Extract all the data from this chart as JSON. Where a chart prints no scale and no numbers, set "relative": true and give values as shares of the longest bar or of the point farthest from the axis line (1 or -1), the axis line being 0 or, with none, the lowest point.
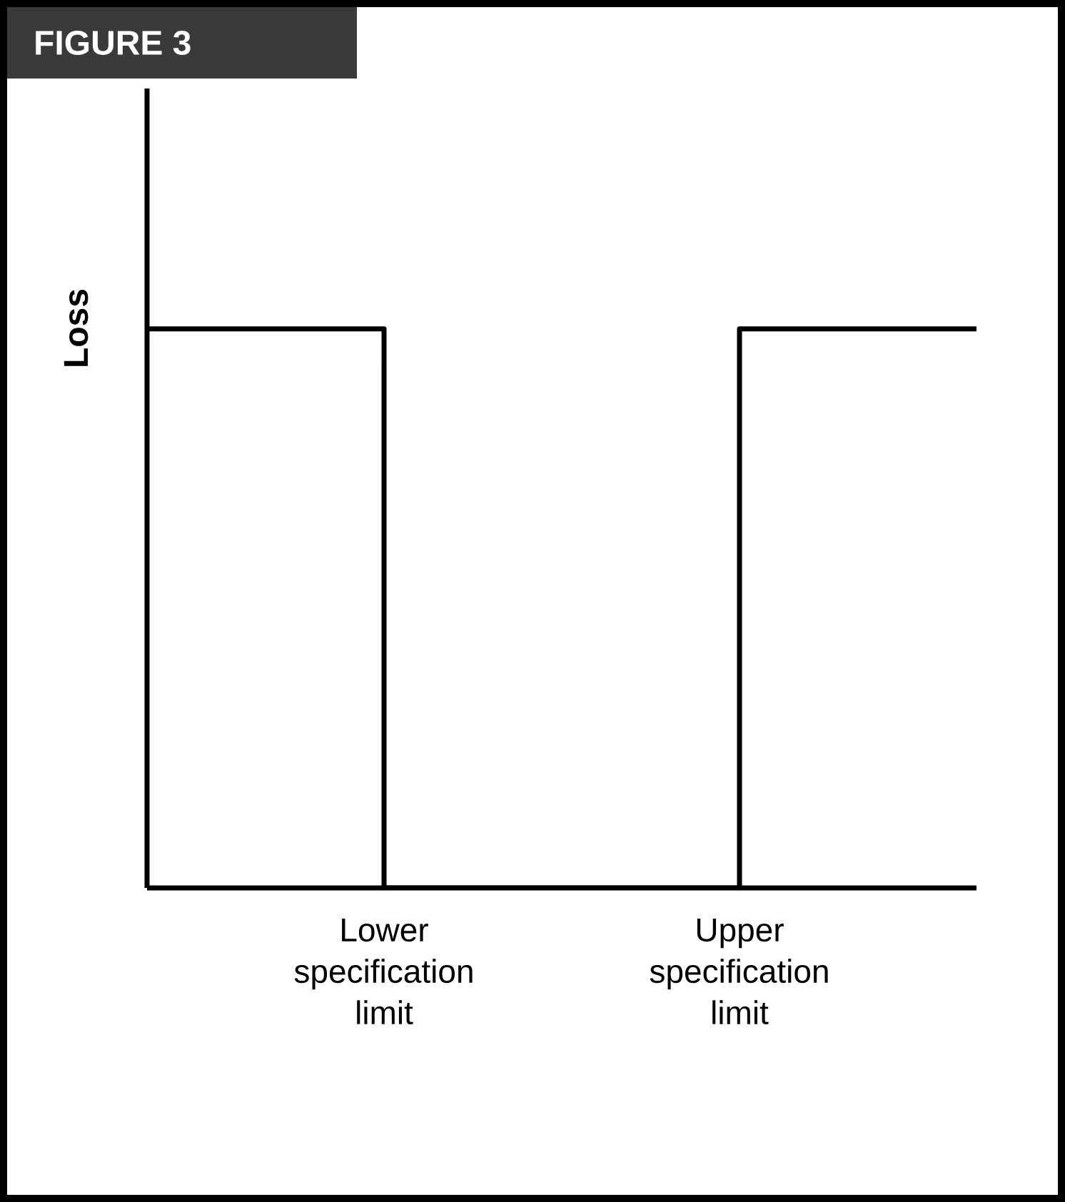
{
  "chart_data": {
    "type": "step",
    "title": "FIGURE 3",
    "ylabel": "Loss",
    "relative": true,
    "categories": [
      null,
      null,
      "Lower specification limit",
      null,
      null,
      "Upper specification limit",
      null,
      null
    ],
    "values": [
      1,
      1,
      0,
      0,
      0,
      1,
      1,
      1
    ],
    "color": "#000000",
    "grid": false,
    "marker": "none",
    "line_style": "solid"
  }
}
